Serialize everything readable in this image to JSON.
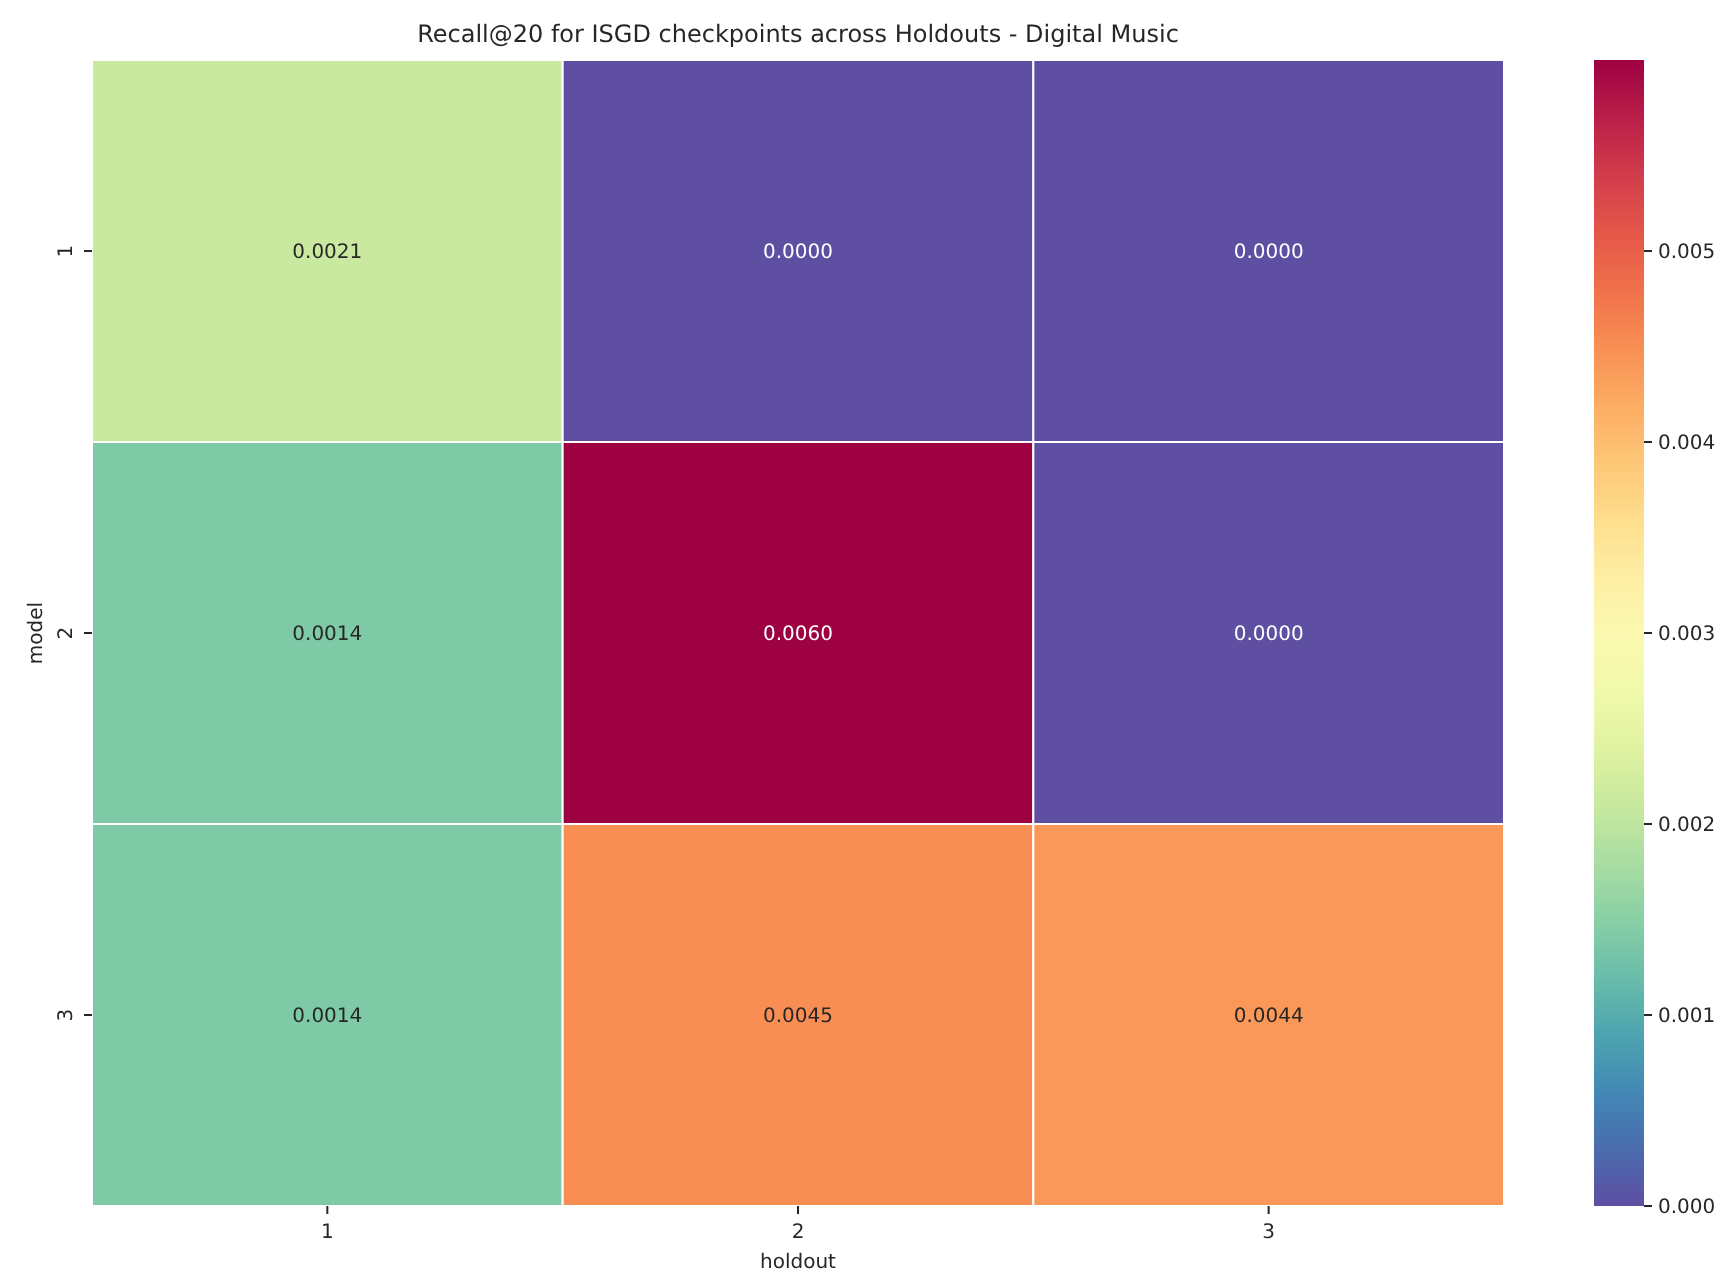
{
  "chart_data": {
    "type": "heatmap",
    "title": "Recall@20 for ISGD checkpoints across Holdouts - Digital Music",
    "xlabel": "holdout",
    "ylabel": "model",
    "categories": [
      "1",
      "2",
      "3"
    ],
    "y_categories": [
      "1",
      "2",
      "3"
    ],
    "cells": [
      [
        0.0021,
        0.0,
        0.0
      ],
      [
        0.0014,
        0.006,
        0.0
      ],
      [
        0.0014,
        0.0045,
        0.0044
      ]
    ],
    "cell_labels": [
      [
        "0.0021",
        "0.0000",
        "0.0000"
      ],
      [
        "0.0014",
        "0.0060",
        "0.0000"
      ],
      [
        "0.0014",
        "0.0045",
        "0.0044"
      ]
    ],
    "clim": [
      0,
      0.006
    ],
    "cticks": [
      {
        "value": 0,
        "label": "0.000"
      },
      {
        "value": 0.001,
        "label": "0.001"
      },
      {
        "value": 0.002,
        "label": "0.002"
      },
      {
        "value": 0.003,
        "label": "0.003"
      },
      {
        "value": 0.004,
        "label": "0.004"
      },
      {
        "value": 0.005,
        "label": "0.005"
      }
    ]
  }
}
